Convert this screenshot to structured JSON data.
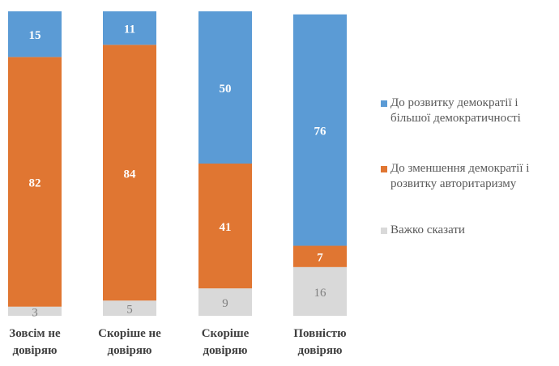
{
  "chart_data": {
    "type": "bar",
    "stacked": true,
    "title": "",
    "xlabel": "",
    "ylabel": "",
    "ylim": [
      0,
      100
    ],
    "categories": [
      [
        "Зовсім не",
        "довіряю"
      ],
      [
        "Скоріше не",
        "довіряю"
      ],
      [
        "Скоріше",
        "довіряю"
      ],
      [
        "Повністю",
        "довіряю"
      ]
    ],
    "series": [
      {
        "name": "Важко сказати",
        "values": [
          3,
          5,
          9,
          16
        ],
        "color": "#d9d9d9",
        "label_color": "#7f7f7f"
      },
      {
        "name": "До зменшення демократії і розвитку авторитаризму",
        "name_lines": [
          "До зменшення демократії і",
          "розвитку авторитаризму"
        ],
        "values": [
          82,
          84,
          41,
          7
        ],
        "color": "#e07632",
        "label_color": "#ffffff"
      },
      {
        "name": "До розвитку демократії і більшої демократичності",
        "name_lines": [
          "До розвитку демократії і",
          "більшої демократичності"
        ],
        "values": [
          15,
          11,
          50,
          76
        ],
        "color": "#5b9bd5",
        "label_color": "#ffffff"
      }
    ],
    "legend_position": "right",
    "grid": false
  }
}
